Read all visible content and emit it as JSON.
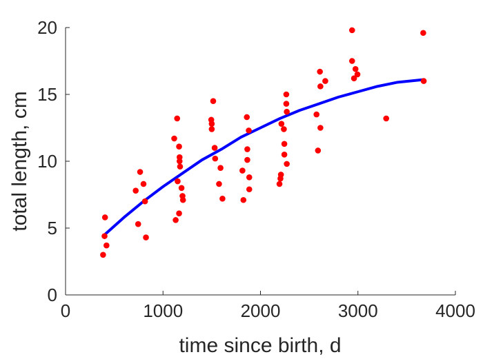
{
  "chart_data": {
    "type": "scatter",
    "title": "",
    "xlabel": "time since birth, d",
    "ylabel": "total length, cm",
    "xlim": [
      0,
      4000
    ],
    "ylim": [
      0,
      20
    ],
    "x_ticks": [
      0,
      1000,
      2000,
      3000,
      4000
    ],
    "y_ticks": [
      0,
      5,
      10,
      15,
      20
    ],
    "x_tick_labels": [
      "0",
      "1000",
      "2000",
      "3000",
      "4000"
    ],
    "y_tick_labels": [
      "0",
      "5",
      "10",
      "15",
      "20"
    ],
    "grid": false,
    "legend": "none",
    "series": [
      {
        "kind": "points",
        "color": "#ff0000",
        "points": [
          [
            385,
            3.0
          ],
          [
            400,
            4.4
          ],
          [
            405,
            5.8
          ],
          [
            420,
            3.7
          ],
          [
            720,
            7.8
          ],
          [
            745,
            5.3
          ],
          [
            765,
            9.2
          ],
          [
            800,
            8.3
          ],
          [
            815,
            7.0
          ],
          [
            825,
            4.3
          ],
          [
            1115,
            11.7
          ],
          [
            1130,
            5.6
          ],
          [
            1145,
            13.2
          ],
          [
            1150,
            8.5
          ],
          [
            1165,
            6.1
          ],
          [
            1165,
            11.1
          ],
          [
            1170,
            10.3
          ],
          [
            1170,
            10.0
          ],
          [
            1175,
            9.6
          ],
          [
            1190,
            8.0
          ],
          [
            1200,
            7.4
          ],
          [
            1205,
            7.1
          ],
          [
            1495,
            13.1
          ],
          [
            1500,
            12.4
          ],
          [
            1500,
            12.8
          ],
          [
            1515,
            14.5
          ],
          [
            1530,
            11.0
          ],
          [
            1535,
            10.2
          ],
          [
            1575,
            8.3
          ],
          [
            1590,
            9.5
          ],
          [
            1610,
            7.2
          ],
          [
            1815,
            9.3
          ],
          [
            1825,
            7.1
          ],
          [
            1860,
            13.3
          ],
          [
            1865,
            10.9
          ],
          [
            1865,
            10.1
          ],
          [
            1880,
            12.3
          ],
          [
            1885,
            8.8
          ],
          [
            1885,
            7.9
          ],
          [
            2195,
            8.3
          ],
          [
            2205,
            8.7
          ],
          [
            2210,
            9.0
          ],
          [
            2215,
            12.8
          ],
          [
            2240,
            12.4
          ],
          [
            2245,
            11.3
          ],
          [
            2245,
            10.5
          ],
          [
            2265,
            15.0
          ],
          [
            2265,
            14.3
          ],
          [
            2270,
            13.7
          ],
          [
            2270,
            9.8
          ],
          [
            2575,
            13.5
          ],
          [
            2590,
            10.8
          ],
          [
            2610,
            16.7
          ],
          [
            2615,
            15.6
          ],
          [
            2615,
            12.5
          ],
          [
            2665,
            16.0
          ],
          [
            2940,
            19.8
          ],
          [
            2940,
            17.5
          ],
          [
            2960,
            16.2
          ],
          [
            2975,
            16.9
          ],
          [
            2995,
            16.5
          ],
          [
            3290,
            13.2
          ],
          [
            3670,
            19.6
          ],
          [
            3675,
            16.0
          ]
        ]
      },
      {
        "kind": "line",
        "color": "#0000ff",
        "points": [
          [
            400,
            4.5
          ],
          [
            600,
            5.8
          ],
          [
            800,
            7.0
          ],
          [
            1000,
            8.1
          ],
          [
            1200,
            9.1
          ],
          [
            1400,
            10.1
          ],
          [
            1600,
            10.9
          ],
          [
            1800,
            11.8
          ],
          [
            2000,
            12.5
          ],
          [
            2200,
            13.2
          ],
          [
            2400,
            13.8
          ],
          [
            2600,
            14.3
          ],
          [
            2800,
            14.8
          ],
          [
            3000,
            15.2
          ],
          [
            3200,
            15.6
          ],
          [
            3400,
            15.9
          ],
          [
            3670,
            16.1
          ]
        ]
      }
    ]
  }
}
